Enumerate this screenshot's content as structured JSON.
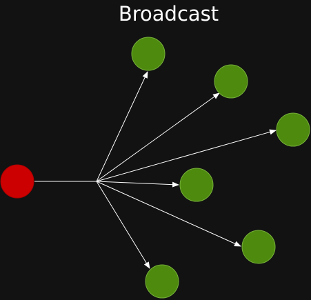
{
  "title": "Broadcast",
  "colors": {
    "background": "#121212",
    "source_fill": "#cc0000",
    "source_stroke": "#aa0000",
    "target_fill": "#4d8a0e",
    "target_stroke": "#76b03a",
    "edge": "#ffffff",
    "title": "#ffffff"
  },
  "nodes": {
    "source": {
      "role": "sender"
    },
    "targets": [
      {
        "role": "receiver"
      },
      {
        "role": "receiver"
      },
      {
        "role": "receiver"
      },
      {
        "role": "receiver"
      },
      {
        "role": "receiver"
      },
      {
        "role": "receiver"
      }
    ]
  }
}
